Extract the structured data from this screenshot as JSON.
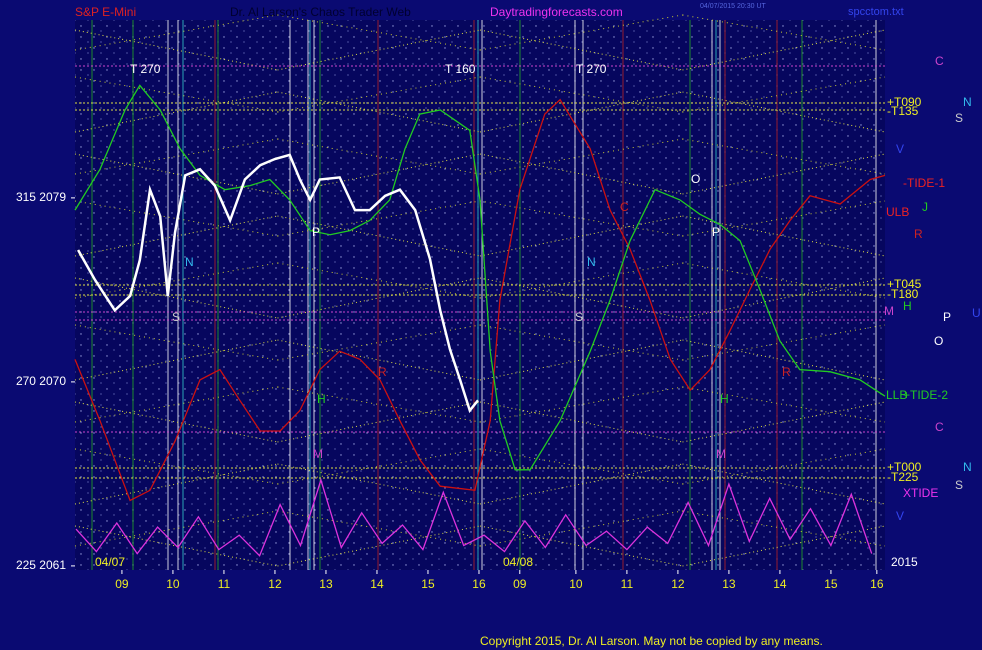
{
  "chart_data": {
    "type": "line",
    "title": "S&P E-Mini",
    "subtitle": "Dr. Al Larson's Chaos Trader Web",
    "website": "Daytradingforecasts.com",
    "timestamp": "04/07/2015 20:30 UT",
    "filename": "spcctom.txt",
    "copyright": "Copyright 2015, Dr. Al Larson. May not be copied by any means.",
    "xlim": [
      8.08,
      23.96
    ],
    "ylim": [
      2060.8,
      2087.7
    ],
    "yticks": [
      {
        "value": 2061,
        "label": "225  2061"
      },
      {
        "value": 2070,
        "label": "270  2070"
      },
      {
        "value": 2079,
        "label": "315  2079"
      }
    ],
    "xticks": [
      {
        "value": 9,
        "label": "09"
      },
      10,
      11,
      12,
      13,
      14,
      15,
      16,
      {
        "value": 16.8,
        "label": "09"
      },
      {
        "value": 17.9,
        "label": "10"
      },
      {
        "value": 18.9,
        "label": "11"
      },
      {
        "value": 19.9,
        "label": "12"
      },
      {
        "value": 20.9,
        "label": "13"
      },
      {
        "value": 21.9,
        "label": "14"
      },
      {
        "value": 22.9,
        "label": "15"
      },
      {
        "value": 23.8,
        "label": "16"
      }
    ],
    "annotations": [
      "T  270",
      "T  160",
      "T  270",
      "N",
      "N",
      "C",
      "O",
      "P",
      "P",
      "R",
      "R",
      "H",
      "H",
      "M",
      "M",
      "S",
      "S",
      "C",
      "N",
      "S",
      "V",
      "-TIDE-1",
      "ULB",
      "J",
      "R",
      "+T090",
      "-T135",
      "+T045",
      "-T180",
      "M",
      "H",
      "P",
      "U",
      "O",
      "LLB",
      "+TIDE-2",
      "C",
      "+T000",
      "-T225",
      "N",
      "S",
      "XTIDE",
      "V",
      "04/07",
      "04/08",
      "2015"
    ],
    "price": {
      "color": "#ffffff",
      "x": [
        8.14,
        8.47,
        8.86,
        9.16,
        9.35,
        9.55,
        9.75,
        9.9,
        10.04,
        10.24,
        10.53,
        10.82,
        11.12,
        11.41,
        11.71,
        12.0,
        12.29,
        12.49,
        12.69,
        12.88,
        13.27,
        13.57,
        13.86,
        14.16,
        14.45,
        14.75,
        15.04,
        15.24,
        15.43,
        15.63,
        15.82,
        15.98
      ],
      "values": [
        2076.45,
        2075.0,
        2073.5,
        2074.2,
        2075.95,
        2079.4,
        2078.1,
        2074.2,
        2077.3,
        2080.1,
        2080.4,
        2079.6,
        2077.9,
        2079.9,
        2080.6,
        2080.9,
        2081.1,
        2079.9,
        2078.9,
        2079.9,
        2080.0,
        2078.4,
        2078.4,
        2079.1,
        2079.4,
        2078.4,
        2076.0,
        2073.5,
        2071.6,
        2070.1,
        2068.6,
        2069.1
      ]
    },
    "series": [
      {
        "name": "-TIDE-1",
        "color": "#cc1111",
        "x": [
          8.08,
          8.57,
          9.16,
          9.55,
          10.04,
          10.53,
          10.92,
          11.31,
          11.71,
          12.1,
          12.49,
          12.88,
          13.27,
          13.67,
          14.06,
          14.45,
          14.84,
          15.24,
          15.92,
          16.22,
          16.41,
          16.8,
          17.29,
          17.59,
          18.18,
          18.57,
          18.96,
          19.35,
          19.75,
          20.14,
          20.53,
          20.92,
          21.31,
          21.71,
          22.1,
          22.49,
          23.08,
          23.67,
          23.96
        ],
        "values": [
          2071.1,
          2068.1,
          2064.2,
          2064.7,
          2067.1,
          2070.1,
          2070.6,
          2069.1,
          2067.6,
          2067.6,
          2068.6,
          2070.6,
          2071.5,
          2071.1,
          2070.1,
          2068.1,
          2066.2,
          2064.9,
          2064.7,
          2068.1,
          2074.0,
          2079.4,
          2083.1,
          2083.8,
          2081.4,
          2078.4,
          2076.5,
          2074.0,
          2071.1,
          2069.6,
          2070.6,
          2072.5,
          2074.5,
          2076.5,
          2077.9,
          2079.1,
          2078.7,
          2079.9,
          2080.1
        ]
      },
      {
        "name": "+TIDE-2",
        "color": "#22cc22",
        "x": [
          8.08,
          8.57,
          9.06,
          9.35,
          9.75,
          10.14,
          10.53,
          11.02,
          11.51,
          11.9,
          12.29,
          12.69,
          13.08,
          13.47,
          13.86,
          14.25,
          14.55,
          14.84,
          15.24,
          15.82,
          16.02,
          16.22,
          16.41,
          16.71,
          17.0,
          17.59,
          18.18,
          18.57,
          18.96,
          19.45,
          19.94,
          20.33,
          20.73,
          21.12,
          21.51,
          21.9,
          22.29,
          22.88,
          23.47,
          23.96
        ],
        "values": [
          2078.4,
          2080.4,
          2083.3,
          2084.5,
          2083.3,
          2081.4,
          2080.1,
          2079.4,
          2079.6,
          2079.9,
          2078.9,
          2077.4,
          2077.2,
          2077.4,
          2077.9,
          2078.9,
          2081.4,
          2083.1,
          2083.3,
          2082.3,
          2078.9,
          2071.5,
          2068.1,
          2065.7,
          2065.7,
          2068.1,
          2071.5,
          2074.0,
          2076.9,
          2079.4,
          2078.9,
          2078.2,
          2077.7,
          2076.9,
          2074.5,
          2072.0,
          2070.6,
          2070.5,
          2070.1,
          2069.3
        ]
      },
      {
        "name": "XTIDE",
        "color": "#dd33dd",
        "x": [
          8.1,
          8.5,
          8.9,
          9.3,
          9.7,
          10.1,
          10.5,
          10.9,
          11.3,
          11.7,
          12.1,
          12.5,
          12.9,
          13.3,
          13.7,
          14.1,
          14.5,
          14.9,
          15.3,
          15.7,
          16.1,
          16.5,
          16.9,
          17.3,
          17.7,
          18.1,
          18.5,
          18.9,
          19.3,
          19.7,
          20.1,
          20.5,
          20.9,
          21.3,
          21.7,
          22.1,
          22.5,
          22.9,
          23.3,
          23.7
        ],
        "values": [
          2062.8,
          2061.7,
          2063.1,
          2061.6,
          2062.9,
          2061.9,
          2063.4,
          2061.8,
          2062.5,
          2061.5,
          2064.0,
          2062.0,
          2065.2,
          2061.9,
          2063.6,
          2062.1,
          2063.0,
          2061.8,
          2064.6,
          2062.0,
          2062.5,
          2061.7,
          2063.2,
          2061.9,
          2063.5,
          2062.0,
          2062.7,
          2061.8,
          2062.9,
          2062.1,
          2064.1,
          2062.0,
          2065.0,
          2062.2,
          2064.3,
          2062.3,
          2063.8,
          2062.0,
          2064.5,
          2061.6
        ]
      }
    ]
  }
}
